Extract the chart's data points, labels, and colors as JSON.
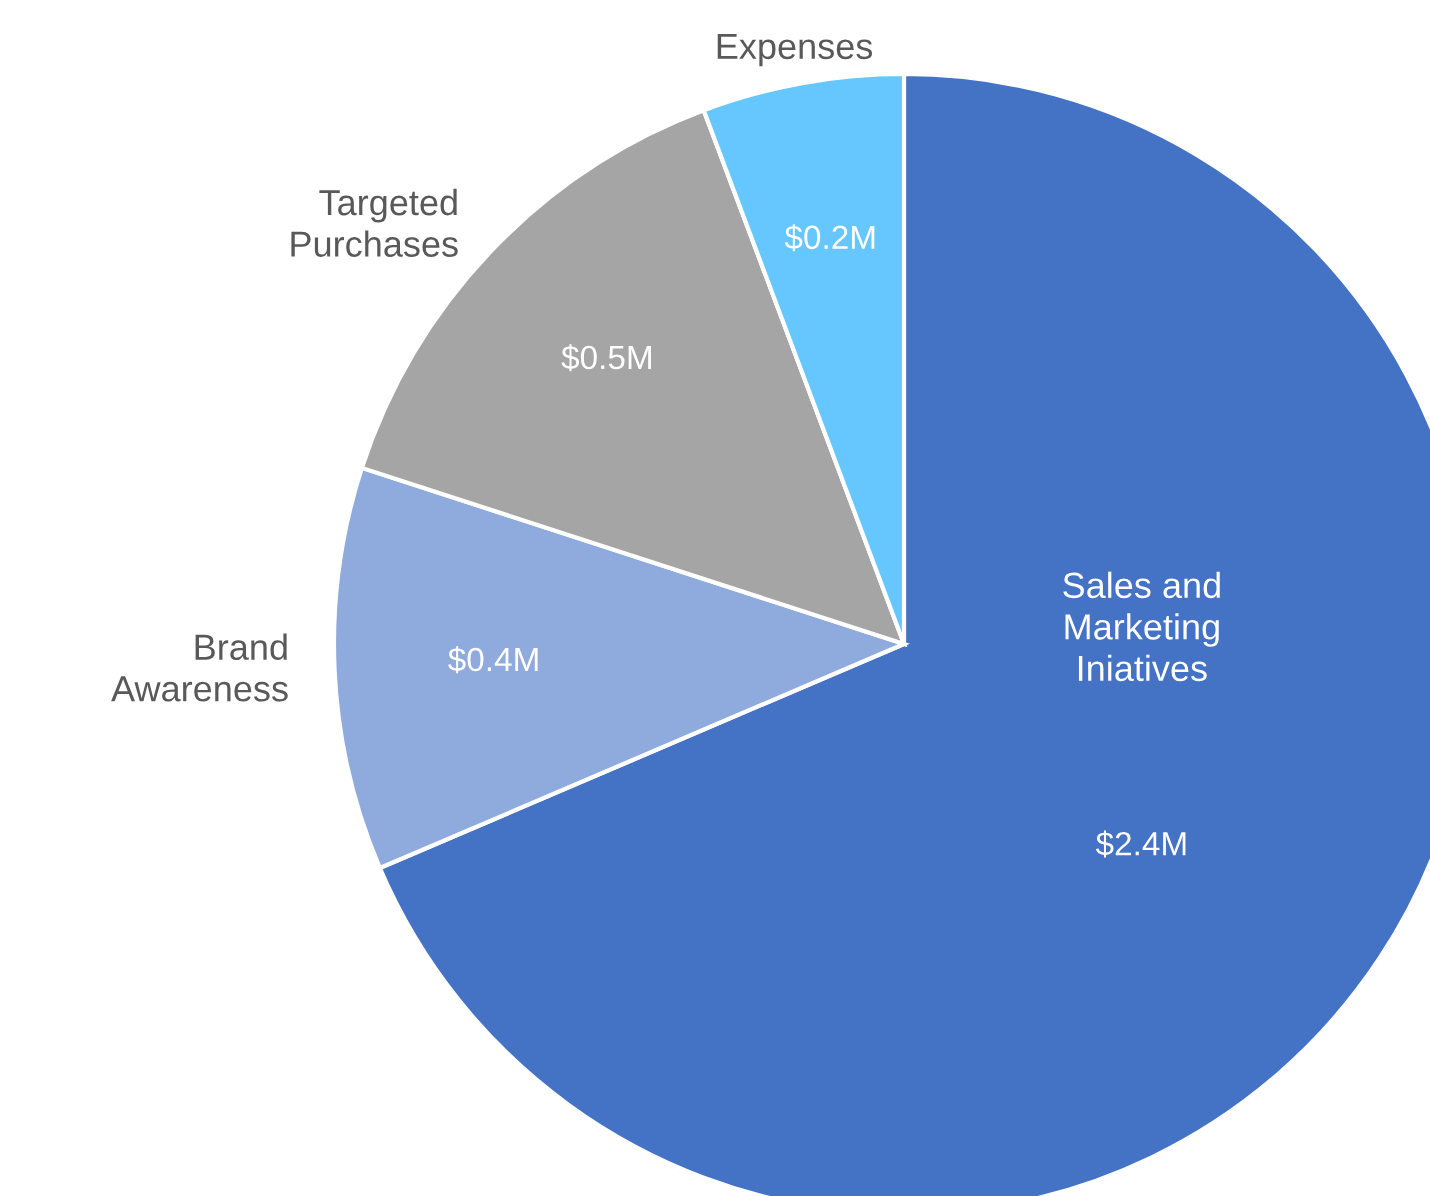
{
  "chart_data": {
    "type": "pie",
    "categories": [
      "Sales and\nMarketing\nIniatives",
      "Brand\nAwareness",
      "Targeted\nPurchases",
      "Expenses"
    ],
    "values": [
      2.4,
      0.4,
      0.5,
      0.2
    ],
    "value_labels": [
      "$2.4M",
      "$0.4M",
      "$0.5M",
      "$0.2M"
    ],
    "colors": [
      "#4472c4",
      "#8faadc",
      "#a5a5a5",
      "#66c7ff"
    ],
    "legend": false
  }
}
